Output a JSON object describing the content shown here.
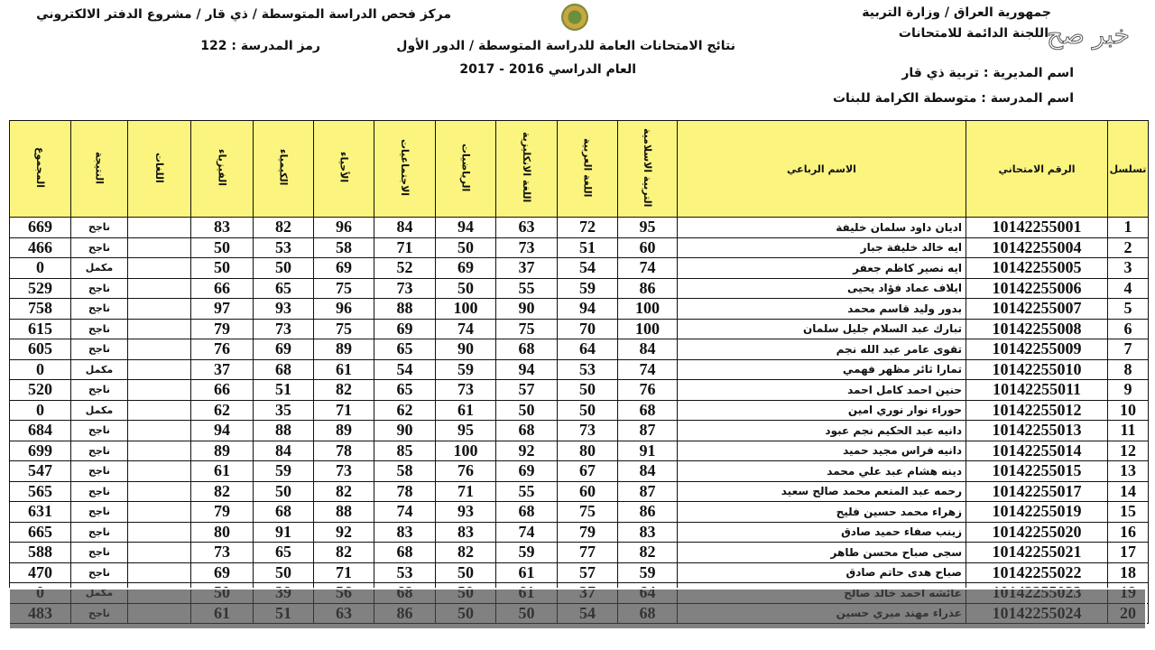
{
  "header": {
    "ministry": "جمهورية العراق / وزارة التربية",
    "committee": "اللجنة الدائمة للامتحانات",
    "directorate": "اسم المديرية : تربية ذي قار",
    "school": "اسم المدرسة : متوسطة الكرامة للبنات",
    "title": "نتائج الامتحانات العامة للدراسة المتوسطة / الدور الأول",
    "year": "العام الدراسي 2016 - 2017",
    "center": "مركز فحص الدراسة المتوسطة / ذي قار / مشروع الدفتر الالكتروني",
    "school_code": "رمز المدرسة : 122",
    "watermark": "خبر صح"
  },
  "colors": {
    "header_bg": "#fbf57f",
    "overlay": "#464646"
  },
  "columns": [
    "المجموع",
    "النتيجة",
    "اللغات",
    "الفيزياء",
    "الكيمياء",
    "الأحياء",
    "الاجتماعيات",
    "الرياضيات",
    "اللغة الانكليزية",
    "اللغة العربية",
    "التربية الاسلامية",
    "الاسم الرباعي",
    "الرقم الامتحاني",
    "تسلسل"
  ],
  "rows": [
    [
      "669",
      "ناجح",
      "",
      "83",
      "82",
      "96",
      "84",
      "94",
      "63",
      "72",
      "95",
      "ادیان داود سلمان خليفة",
      "10142255001",
      "1"
    ],
    [
      "466",
      "ناجح",
      "",
      "50",
      "53",
      "58",
      "71",
      "50",
      "73",
      "51",
      "60",
      "ايه خالد خليفة جبار",
      "10142255004",
      "2"
    ],
    [
      "0",
      "مكمل",
      "",
      "50",
      "50",
      "69",
      "52",
      "69",
      "37",
      "54",
      "74",
      "ايه نصير كاظم جعفر",
      "10142255005",
      "3"
    ],
    [
      "529",
      "ناجح",
      "",
      "66",
      "65",
      "75",
      "73",
      "50",
      "55",
      "59",
      "86",
      "ايلاف عماد فؤاد يحيى",
      "10142255006",
      "4"
    ],
    [
      "758",
      "ناجح",
      "",
      "97",
      "93",
      "96",
      "88",
      "100",
      "90",
      "94",
      "100",
      "بدور وليد قاسم محمد",
      "10142255007",
      "5"
    ],
    [
      "615",
      "ناجح",
      "",
      "79",
      "73",
      "75",
      "69",
      "74",
      "75",
      "70",
      "100",
      "تبارك عبد السلام جليل سلمان",
      "10142255008",
      "6"
    ],
    [
      "605",
      "ناجح",
      "",
      "76",
      "69",
      "89",
      "65",
      "90",
      "68",
      "64",
      "84",
      "تقوى عامر عبد الله نجم",
      "10142255009",
      "7"
    ],
    [
      "0",
      "مكمل",
      "",
      "37",
      "68",
      "61",
      "54",
      "59",
      "94",
      "53",
      "74",
      "تمارا ثائر مظهر فهمي",
      "10142255010",
      "8"
    ],
    [
      "520",
      "ناجح",
      "",
      "66",
      "51",
      "82",
      "65",
      "73",
      "57",
      "50",
      "76",
      "حنين احمد كامل احمد",
      "10142255011",
      "9"
    ],
    [
      "0",
      "مكمل",
      "",
      "62",
      "35",
      "71",
      "62",
      "61",
      "50",
      "50",
      "68",
      "حوراء نوار نوري امين",
      "10142255012",
      "10"
    ],
    [
      "684",
      "ناجح",
      "",
      "94",
      "88",
      "89",
      "90",
      "95",
      "68",
      "73",
      "87",
      "دانيه عبد الحكيم نجم عبود",
      "10142255013",
      "11"
    ],
    [
      "699",
      "ناجح",
      "",
      "89",
      "84",
      "78",
      "85",
      "100",
      "92",
      "80",
      "91",
      "دانيه فراس مجيد حميد",
      "10142255014",
      "12"
    ],
    [
      "547",
      "ناجح",
      "",
      "61",
      "59",
      "73",
      "58",
      "76",
      "69",
      "67",
      "84",
      "دينه هشام عبد علي محمد",
      "10142255015",
      "13"
    ],
    [
      "565",
      "ناجح",
      "",
      "82",
      "50",
      "82",
      "78",
      "71",
      "55",
      "60",
      "87",
      "رحمه عبد المنعم محمد صالح سعيد",
      "10142255017",
      "14"
    ],
    [
      "631",
      "ناجح",
      "",
      "79",
      "68",
      "88",
      "74",
      "93",
      "68",
      "75",
      "86",
      "زهراء محمد حسين فليح",
      "10142255019",
      "15"
    ],
    [
      "665",
      "ناجح",
      "",
      "80",
      "91",
      "92",
      "83",
      "83",
      "74",
      "79",
      "83",
      "زينب صفاء حميد صادق",
      "10142255020",
      "16"
    ],
    [
      "588",
      "ناجح",
      "",
      "73",
      "65",
      "82",
      "68",
      "82",
      "59",
      "77",
      "82",
      "سجى صباح محسن طاهر",
      "10142255021",
      "17"
    ],
    [
      "470",
      "ناجح",
      "",
      "69",
      "50",
      "71",
      "53",
      "50",
      "61",
      "57",
      "59",
      "صباح هدى حاتم صادق",
      "10142255022",
      "18"
    ],
    [
      "0",
      "مكمل",
      "",
      "50",
      "39",
      "56",
      "68",
      "50",
      "61",
      "37",
      "64",
      "عائشه احمد خالد صالح",
      "10142255023",
      "19"
    ],
    [
      "483",
      "ناجح",
      "",
      "61",
      "51",
      "63",
      "86",
      "50",
      "50",
      "54",
      "68",
      "عذراء مهند ميري حسين",
      "10142255024",
      "20"
    ]
  ]
}
